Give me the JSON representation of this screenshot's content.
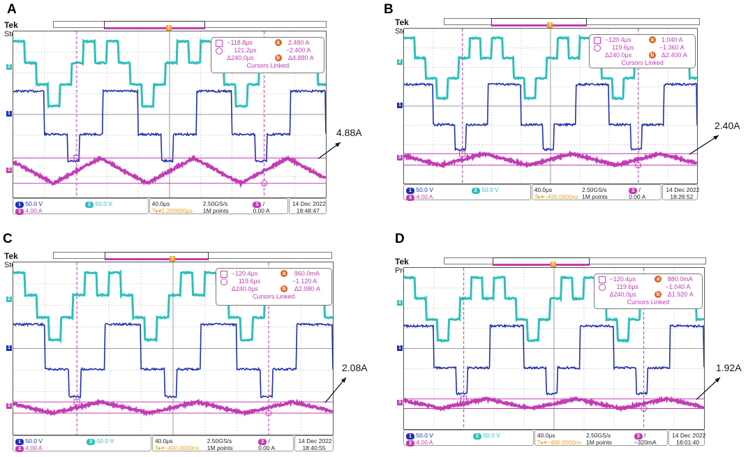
{
  "colors": {
    "ch1": "#1c2fb0",
    "ch2": "#2cc0bc",
    "ch3": "#c23cb6",
    "cursor": "#c03cb4",
    "trig": "#f2a020",
    "grid": "#9a9a9a",
    "badge": "#e0632a"
  },
  "panels": [
    {
      "label": "A",
      "brand": "Tek",
      "mode": "Stop",
      "readout": {
        "c1_time": "−118.8μs",
        "c2_time": "121.2μs",
        "delta_time": "Δ240.0μs",
        "a_value": "2.480 A",
        "b_value": "−2.400 A",
        "delta_value": "Δ4.880 A",
        "linked": "Cursors Linked"
      },
      "status": {
        "ch1_scale": "50.0 V",
        "ch2_scale": "50.0 V",
        "ch3_scale": "4.00 A",
        "timebase": "40.0μs",
        "trig_pos": "1.200000μs",
        "sample_rate": "2.50GS/s",
        "record": "1M points",
        "trig_src": "3",
        "trig_level": "0.00 A",
        "date": "14 Dec  2022",
        "time": "18:48:47"
      },
      "annotation": "4.88A"
    },
    {
      "label": "B",
      "brand": "Tek",
      "mode": "Stop",
      "readout": {
        "c1_time": "−120.4μs",
        "c2_time": "119.6μs",
        "delta_time": "Δ240.0μs",
        "a_value": "1.040 A",
        "b_value": "−1.360 A",
        "delta_value": "Δ2.400 A",
        "linked": "Cursors Linked"
      },
      "status": {
        "ch1_scale": "50.0 V",
        "ch2_scale": "50.0 V",
        "ch3_scale": "4.00 A",
        "timebase": "40.0μs",
        "trig_pos": "−400.0000ns",
        "sample_rate": "2.50GS/s",
        "record": "1M points",
        "trig_src": "3",
        "trig_level": "0.00 A",
        "date": "14 Dec  2022",
        "time": "18:26:52"
      },
      "annotation": "2.40A"
    },
    {
      "label": "C",
      "brand": "Tek",
      "mode": "Stop",
      "readout": {
        "c1_time": "−120.4μs",
        "c2_time": "119.6μs",
        "delta_time": "Δ240.0μs",
        "a_value": "960.0mA",
        "b_value": "−1.120 A",
        "delta_value": "Δ2.080 A",
        "linked": "Cursors Linked"
      },
      "status": {
        "ch1_scale": "50.0 V",
        "ch2_scale": "50.0 V",
        "ch3_scale": "4.00 A",
        "timebase": "40.0μs",
        "trig_pos": "−400.0000ns",
        "sample_rate": "2.50GS/s",
        "record": "1M points",
        "trig_src": "3",
        "trig_level": "0.00 A",
        "date": "14 Dec  2022",
        "time": "18:40:55"
      },
      "annotation": "2.08A"
    },
    {
      "label": "D",
      "brand": "Tek",
      "mode": "PreVu",
      "readout": {
        "c1_time": "−120.4μs",
        "c2_time": "119.6μs",
        "delta_time": "Δ240.0μs",
        "a_value": "880.0mA",
        "b_value": "−1.040 A",
        "delta_value": "Δ1.920 A",
        "linked": "Cursors Linked"
      },
      "status": {
        "ch1_scale": "50.0 V",
        "ch2_scale": "50.0 V",
        "ch3_scale": "4.00 A",
        "timebase": "40.0μs",
        "trig_pos": "−400.0000ns",
        "sample_rate": "2.50GS/s",
        "record": "1M points",
        "trig_src": "3",
        "trig_level": "−320mA",
        "date": "14 Dec  2022",
        "time": "18:01:40"
      },
      "annotation": "1.92A"
    }
  ],
  "chart_data": [
    {
      "type": "line",
      "title": "A",
      "x_unit": "μs",
      "time_per_div": 40,
      "x_range": [
        -200,
        200
      ],
      "series": [
        {
          "name": "Ch1 voltage",
          "unit": "V",
          "scale_per_div": 50
        },
        {
          "name": "Ch2 voltage",
          "unit": "V",
          "scale_per_div": 50
        },
        {
          "name": "Ch3 current",
          "unit": "A",
          "scale_per_div": 4,
          "peak_to_peak": 4.88,
          "cursor_a": 2.48,
          "cursor_b": -2.4
        }
      ],
      "cursors": {
        "t1": -118.8,
        "t2": 121.2,
        "delta_t": 240.0
      },
      "annotation": "4.88A"
    },
    {
      "type": "line",
      "title": "B",
      "x_unit": "μs",
      "time_per_div": 40,
      "x_range": [
        -200,
        200
      ],
      "series": [
        {
          "name": "Ch1 voltage",
          "unit": "V",
          "scale_per_div": 50
        },
        {
          "name": "Ch2 voltage",
          "unit": "V",
          "scale_per_div": 50
        },
        {
          "name": "Ch3 current",
          "unit": "A",
          "scale_per_div": 4,
          "peak_to_peak": 2.4,
          "cursor_a": 1.04,
          "cursor_b": -1.36
        }
      ],
      "cursors": {
        "t1": -120.4,
        "t2": 119.6,
        "delta_t": 240.0
      },
      "annotation": "2.40A"
    },
    {
      "type": "line",
      "title": "C",
      "x_unit": "μs",
      "time_per_div": 40,
      "x_range": [
        -200,
        200
      ],
      "series": [
        {
          "name": "Ch1 voltage",
          "unit": "V",
          "scale_per_div": 50
        },
        {
          "name": "Ch2 voltage",
          "unit": "V",
          "scale_per_div": 50
        },
        {
          "name": "Ch3 current",
          "unit": "A",
          "scale_per_div": 4,
          "peak_to_peak": 2.08,
          "cursor_a": 0.96,
          "cursor_b": -1.12
        }
      ],
      "cursors": {
        "t1": -120.4,
        "t2": 119.6,
        "delta_t": 240.0
      },
      "annotation": "2.08A"
    },
    {
      "type": "line",
      "title": "D",
      "x_unit": "μs",
      "time_per_div": 40,
      "x_range": [
        -200,
        200
      ],
      "series": [
        {
          "name": "Ch1 voltage",
          "unit": "V",
          "scale_per_div": 50
        },
        {
          "name": "Ch2 voltage",
          "unit": "V",
          "scale_per_div": 50
        },
        {
          "name": "Ch3 current",
          "unit": "A",
          "scale_per_div": 4,
          "peak_to_peak": 1.92,
          "cursor_a": 0.88,
          "cursor_b": -1.04
        }
      ],
      "cursors": {
        "t1": -120.4,
        "t2": 119.6,
        "delta_t": 240.0
      },
      "annotation": "1.92A"
    }
  ]
}
